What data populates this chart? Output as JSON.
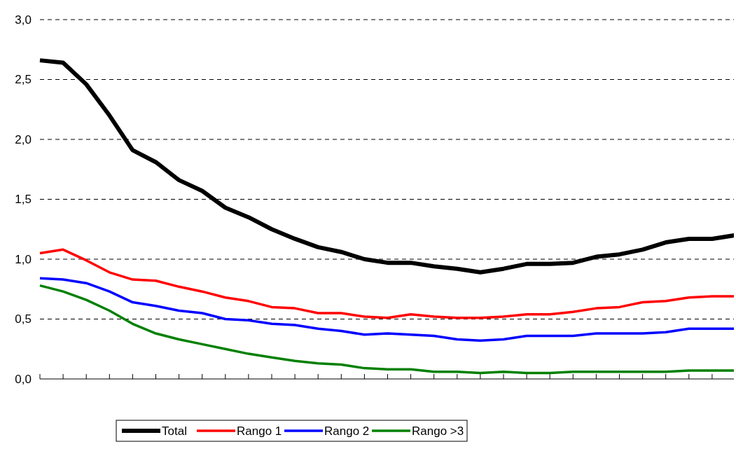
{
  "chart_data": {
    "type": "line",
    "categories": [
      null,
      null,
      null,
      null,
      null,
      null,
      null,
      null,
      null,
      null,
      null,
      null,
      null,
      null,
      null,
      null,
      null,
      null,
      null,
      null,
      null,
      null,
      null,
      null,
      null,
      null,
      null,
      null,
      null,
      null,
      null
    ],
    "series": [
      {
        "name": "Total",
        "color": "#000000",
        "values": [
          2.66,
          2.64,
          2.46,
          2.2,
          1.91,
          1.81,
          1.66,
          1.57,
          1.43,
          1.35,
          1.25,
          1.17,
          1.1,
          1.06,
          1.0,
          0.97,
          0.97,
          0.94,
          0.92,
          0.89,
          0.92,
          0.96,
          0.96,
          0.97,
          1.02,
          1.04,
          1.08,
          1.14,
          1.17,
          1.17,
          1.2
        ]
      },
      {
        "name": "Rango 1",
        "color": "#ff0000",
        "values": [
          1.05,
          1.08,
          0.99,
          0.89,
          0.83,
          0.82,
          0.77,
          0.73,
          0.68,
          0.65,
          0.6,
          0.59,
          0.55,
          0.55,
          0.52,
          0.51,
          0.54,
          0.52,
          0.51,
          0.51,
          0.52,
          0.54,
          0.54,
          0.56,
          0.59,
          0.6,
          0.64,
          0.65,
          0.68,
          0.69,
          0.69
        ]
      },
      {
        "name": "Rango 2",
        "color": "#0000ff",
        "values": [
          0.84,
          0.83,
          0.8,
          0.73,
          0.64,
          0.61,
          0.57,
          0.55,
          0.5,
          0.49,
          0.46,
          0.45,
          0.42,
          0.4,
          0.37,
          0.38,
          0.37,
          0.36,
          0.33,
          0.32,
          0.33,
          0.36,
          0.36,
          0.36,
          0.38,
          0.38,
          0.38,
          0.39,
          0.42,
          0.42,
          0.42
        ]
      },
      {
        "name": "Rango >3",
        "color": "#008000",
        "values": [
          0.78,
          0.73,
          0.66,
          0.57,
          0.46,
          0.38,
          0.33,
          0.29,
          0.25,
          0.21,
          0.18,
          0.15,
          0.13,
          0.12,
          0.09,
          0.08,
          0.08,
          0.06,
          0.06,
          0.05,
          0.06,
          0.05,
          0.05,
          0.06,
          0.06,
          0.06,
          0.06,
          0.06,
          0.07,
          0.07,
          0.07
        ]
      }
    ],
    "ylim": [
      0,
      3
    ],
    "yticks": [
      {
        "value": 0,
        "label": "0,0"
      },
      {
        "value": 0.5,
        "label": "0,5"
      },
      {
        "value": 1,
        "label": "1,0"
      },
      {
        "value": 1.5,
        "label": "1,5"
      },
      {
        "value": 2,
        "label": "2,0"
      },
      {
        "value": 2.5,
        "label": "2,5"
      },
      {
        "value": 3,
        "label": "3,0"
      }
    ],
    "grid": "y",
    "legend": "bottom",
    "marker": "none",
    "line_style": "solid"
  }
}
